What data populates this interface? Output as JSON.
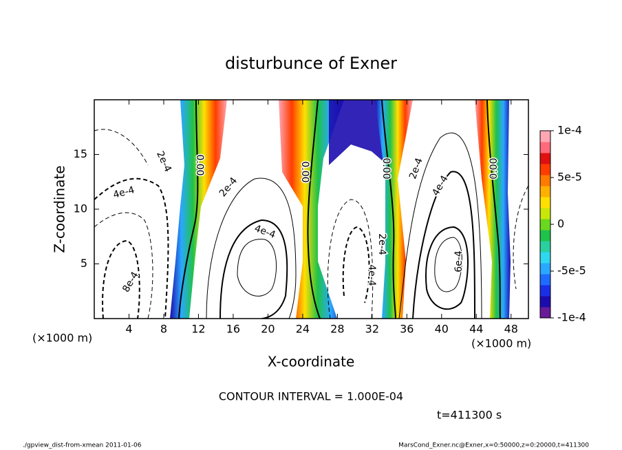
{
  "chart_data": {
    "type": "contour",
    "title": "disturbunce of Exner",
    "x_label": "X-coordinate",
    "y_label": "Z-coordinate",
    "x_unit_label": "(×1000 m)",
    "xlim": [
      0,
      50
    ],
    "xticks": [
      4,
      8,
      12,
      16,
      20,
      24,
      28,
      32,
      36,
      40,
      44,
      48
    ],
    "ylim": [
      0,
      20
    ],
    "yticks": [
      5,
      10,
      15
    ],
    "clim": [
      -0.0001,
      0.0001
    ],
    "cticks": [
      {
        "value": 0.0001,
        "label": "1e-4"
      },
      {
        "value": 5e-05,
        "label": "5e-5"
      },
      0,
      {
        "value": -5e-05,
        "label": "-5e-5"
      },
      {
        "value": -0.0001,
        "label": "-1e-4"
      }
    ],
    "colorbar_colors": [
      "#6a1b9a",
      "#1c0cae",
      "#1a2ee6",
      "#1e6cff",
      "#2aa8ff",
      "#2fd8f0",
      "#2ad0a0",
      "#1fc24a",
      "#6ad81e",
      "#c8e60a",
      "#ffe000",
      "#ffb000",
      "#ff7a00",
      "#ff3c00",
      "#e01010",
      "#ff6a7a",
      "#ffa6b4"
    ],
    "contour_labels": [
      "0.00",
      "2e-4",
      "4e-4",
      "8e-4",
      "2e-4",
      "4e-4",
      "0.00",
      "0.00",
      "2e-4",
      "4e-4",
      "2e-4",
      "4e-4",
      "6e-4",
      "0.00"
    ],
    "contour_interval": "CONTOUR INTERVAL = 1.000E-04",
    "time_label": "t=411300 s",
    "footer_left": "./gpview_dist-from-xmean  2011-01-06",
    "footer_right": "MarsCond_Exner.nc@Exner,x=0:50000,z=0:20000,t=411300"
  }
}
